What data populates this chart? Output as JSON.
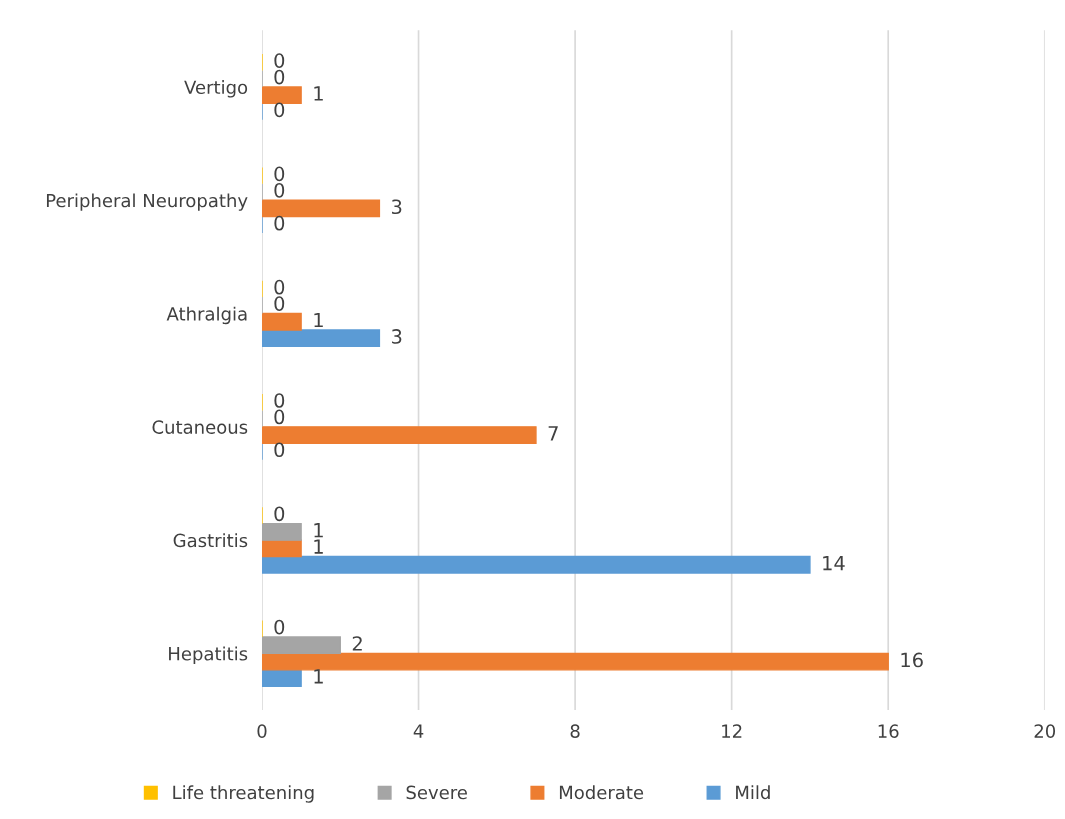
{
  "chart_data": {
    "type": "bar",
    "orientation": "horizontal",
    "categories": [
      "Vertigo",
      "Peripheral Neuropathy",
      "Athralgia",
      "Cutaneous",
      "Gastritis",
      "Hepatitis"
    ],
    "series": [
      {
        "name": "Mild",
        "color": "#5b9bd5",
        "values": [
          0,
          0,
          3,
          0,
          14,
          1
        ]
      },
      {
        "name": "Moderate",
        "color": "#ed7d31",
        "values": [
          1,
          3,
          1,
          7,
          1,
          16
        ]
      },
      {
        "name": "Severe",
        "color": "#a5a5a5",
        "values": [
          0,
          0,
          0,
          0,
          1,
          2
        ]
      },
      {
        "name": "Life threatening",
        "color": "#ffc000",
        "values": [
          0,
          0,
          0,
          0,
          0,
          0
        ]
      }
    ],
    "xlim": [
      0,
      20
    ],
    "xticks": [
      0,
      4,
      8,
      12,
      16,
      20
    ],
    "grid": "x",
    "legend": "bottom",
    "data_labels": true
  }
}
